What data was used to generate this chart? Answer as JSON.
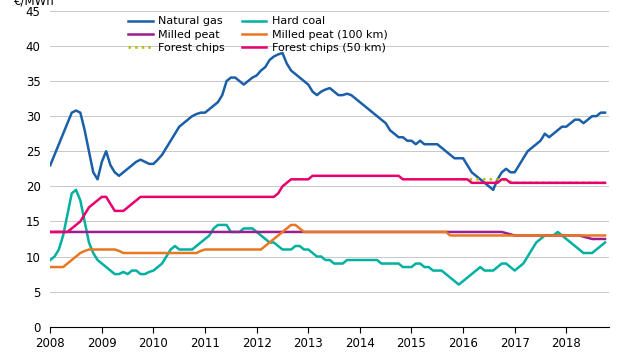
{
  "title": "€/MWh",
  "ylim": [
    0,
    45
  ],
  "yticks": [
    0,
    5,
    10,
    15,
    20,
    25,
    30,
    35,
    40,
    45
  ],
  "xlim": [
    2008.0,
    2018.83
  ],
  "xtick_positions": [
    2008,
    2009,
    2010,
    2011,
    2012,
    2013,
    2014,
    2015,
    2016,
    2017,
    2018
  ],
  "xtick_labels": [
    "2008",
    "2009",
    "2010",
    "2011",
    "2012",
    "2013",
    "2014",
    "2015",
    "2016",
    "2017",
    "2018"
  ],
  "background_color": "#ffffff",
  "grid_color": "#c8c8c8",
  "series": {
    "natural_gas": {
      "label": "Natural gas",
      "color": "#1a5fa8",
      "linewidth": 1.8,
      "x": [
        2008.0,
        2008.083,
        2008.167,
        2008.25,
        2008.333,
        2008.417,
        2008.5,
        2008.583,
        2008.667,
        2008.75,
        2008.833,
        2008.917,
        2009.0,
        2009.083,
        2009.167,
        2009.25,
        2009.333,
        2009.417,
        2009.5,
        2009.583,
        2009.667,
        2009.75,
        2009.833,
        2009.917,
        2010.0,
        2010.083,
        2010.167,
        2010.25,
        2010.333,
        2010.417,
        2010.5,
        2010.583,
        2010.667,
        2010.75,
        2010.833,
        2010.917,
        2011.0,
        2011.083,
        2011.167,
        2011.25,
        2011.333,
        2011.417,
        2011.5,
        2011.583,
        2011.667,
        2011.75,
        2011.833,
        2011.917,
        2012.0,
        2012.083,
        2012.167,
        2012.25,
        2012.333,
        2012.417,
        2012.5,
        2012.583,
        2012.667,
        2012.75,
        2012.833,
        2012.917,
        2013.0,
        2013.083,
        2013.167,
        2013.25,
        2013.333,
        2013.417,
        2013.5,
        2013.583,
        2013.667,
        2013.75,
        2013.833,
        2013.917,
        2014.0,
        2014.083,
        2014.167,
        2014.25,
        2014.333,
        2014.417,
        2014.5,
        2014.583,
        2014.667,
        2014.75,
        2014.833,
        2014.917,
        2015.0,
        2015.083,
        2015.167,
        2015.25,
        2015.333,
        2015.417,
        2015.5,
        2015.583,
        2015.667,
        2015.75,
        2015.833,
        2015.917,
        2016.0,
        2016.083,
        2016.167,
        2016.25,
        2016.333,
        2016.417,
        2016.5,
        2016.583,
        2016.667,
        2016.75,
        2016.833,
        2016.917,
        2017.0,
        2017.083,
        2017.167,
        2017.25,
        2017.333,
        2017.417,
        2017.5,
        2017.583,
        2017.667,
        2017.75,
        2017.833,
        2017.917,
        2018.0,
        2018.083,
        2018.167,
        2018.25,
        2018.333,
        2018.417,
        2018.5,
        2018.583,
        2018.667,
        2018.75
      ],
      "y": [
        23.0,
        24.5,
        26.0,
        27.5,
        29.0,
        30.5,
        30.8,
        30.5,
        28.0,
        25.0,
        22.0,
        21.0,
        23.5,
        25.0,
        23.0,
        22.0,
        21.5,
        22.0,
        22.5,
        23.0,
        23.5,
        23.8,
        23.5,
        23.2,
        23.2,
        23.8,
        24.5,
        25.5,
        26.5,
        27.5,
        28.5,
        29.0,
        29.5,
        30.0,
        30.3,
        30.5,
        30.5,
        31.0,
        31.5,
        32.0,
        33.0,
        35.0,
        35.5,
        35.5,
        35.0,
        34.5,
        35.0,
        35.5,
        35.8,
        36.5,
        37.0,
        38.0,
        38.5,
        38.8,
        39.0,
        37.5,
        36.5,
        36.0,
        35.5,
        35.0,
        34.5,
        33.5,
        33.0,
        33.5,
        33.8,
        34.0,
        33.5,
        33.0,
        33.0,
        33.2,
        33.0,
        32.5,
        32.0,
        31.5,
        31.0,
        30.5,
        30.0,
        29.5,
        29.0,
        28.0,
        27.5,
        27.0,
        27.0,
        26.5,
        26.5,
        26.0,
        26.5,
        26.0,
        26.0,
        26.0,
        26.0,
        25.5,
        25.0,
        24.5,
        24.0,
        24.0,
        24.0,
        23.0,
        22.0,
        21.5,
        21.0,
        20.5,
        20.0,
        19.5,
        21.0,
        22.0,
        22.5,
        22.0,
        22.0,
        23.0,
        24.0,
        25.0,
        25.5,
        26.0,
        26.5,
        27.5,
        27.0,
        27.5,
        28.0,
        28.5,
        28.5,
        29.0,
        29.5,
        29.5,
        29.0,
        29.5,
        30.0,
        30.0,
        30.5,
        30.5
      ]
    },
    "hard_coal": {
      "label": "Hard coal",
      "color": "#00b0a0",
      "linewidth": 1.8,
      "x": [
        2008.0,
        2008.083,
        2008.167,
        2008.25,
        2008.333,
        2008.417,
        2008.5,
        2008.583,
        2008.667,
        2008.75,
        2008.833,
        2008.917,
        2009.0,
        2009.083,
        2009.167,
        2009.25,
        2009.333,
        2009.417,
        2009.5,
        2009.583,
        2009.667,
        2009.75,
        2009.833,
        2009.917,
        2010.0,
        2010.083,
        2010.167,
        2010.25,
        2010.333,
        2010.417,
        2010.5,
        2010.583,
        2010.667,
        2010.75,
        2010.833,
        2010.917,
        2011.0,
        2011.083,
        2011.167,
        2011.25,
        2011.333,
        2011.417,
        2011.5,
        2011.583,
        2011.667,
        2011.75,
        2011.833,
        2011.917,
        2012.0,
        2012.083,
        2012.167,
        2012.25,
        2012.333,
        2012.417,
        2012.5,
        2012.583,
        2012.667,
        2012.75,
        2012.833,
        2012.917,
        2013.0,
        2013.083,
        2013.167,
        2013.25,
        2013.333,
        2013.417,
        2013.5,
        2013.583,
        2013.667,
        2013.75,
        2013.833,
        2013.917,
        2014.0,
        2014.083,
        2014.167,
        2014.25,
        2014.333,
        2014.417,
        2014.5,
        2014.583,
        2014.667,
        2014.75,
        2014.833,
        2014.917,
        2015.0,
        2015.083,
        2015.167,
        2015.25,
        2015.333,
        2015.417,
        2015.5,
        2015.583,
        2015.667,
        2015.75,
        2015.833,
        2015.917,
        2016.0,
        2016.083,
        2016.167,
        2016.25,
        2016.333,
        2016.417,
        2016.5,
        2016.583,
        2016.667,
        2016.75,
        2016.833,
        2016.917,
        2017.0,
        2017.083,
        2017.167,
        2017.25,
        2017.333,
        2017.417,
        2017.5,
        2017.583,
        2017.667,
        2017.75,
        2017.833,
        2017.917,
        2018.0,
        2018.083,
        2018.167,
        2018.25,
        2018.333,
        2018.417,
        2018.5,
        2018.583,
        2018.667,
        2018.75
      ],
      "y": [
        9.5,
        10.0,
        11.0,
        13.0,
        16.0,
        19.0,
        19.5,
        18.0,
        15.0,
        12.0,
        10.5,
        9.5,
        9.0,
        8.5,
        8.0,
        7.5,
        7.5,
        7.8,
        7.5,
        8.0,
        8.0,
        7.5,
        7.5,
        7.8,
        8.0,
        8.5,
        9.0,
        10.0,
        11.0,
        11.5,
        11.0,
        11.0,
        11.0,
        11.0,
        11.5,
        12.0,
        12.5,
        13.0,
        14.0,
        14.5,
        14.5,
        14.5,
        13.5,
        13.5,
        13.5,
        14.0,
        14.0,
        14.0,
        13.5,
        13.0,
        12.5,
        12.0,
        12.0,
        11.5,
        11.0,
        11.0,
        11.0,
        11.5,
        11.5,
        11.0,
        11.0,
        10.5,
        10.0,
        10.0,
        9.5,
        9.5,
        9.0,
        9.0,
        9.0,
        9.5,
        9.5,
        9.5,
        9.5,
        9.5,
        9.5,
        9.5,
        9.5,
        9.0,
        9.0,
        9.0,
        9.0,
        9.0,
        8.5,
        8.5,
        8.5,
        9.0,
        9.0,
        8.5,
        8.5,
        8.0,
        8.0,
        8.0,
        7.5,
        7.0,
        6.5,
        6.0,
        6.5,
        7.0,
        7.5,
        8.0,
        8.5,
        8.0,
        8.0,
        8.0,
        8.5,
        9.0,
        9.0,
        8.5,
        8.0,
        8.5,
        9.0,
        10.0,
        11.0,
        12.0,
        12.5,
        13.0,
        13.0,
        13.0,
        13.5,
        13.0,
        12.5,
        12.0,
        11.5,
        11.0,
        10.5,
        10.5,
        10.5,
        11.0,
        11.5,
        12.0
      ]
    },
    "milled_peat": {
      "label": "Milled peat",
      "color": "#9b1e8e",
      "linewidth": 1.8,
      "x": [
        2008.0,
        2008.25,
        2008.5,
        2008.75,
        2009.0,
        2009.25,
        2009.5,
        2009.75,
        2010.0,
        2010.25,
        2010.5,
        2010.75,
        2011.0,
        2011.25,
        2011.5,
        2011.75,
        2012.0,
        2012.25,
        2012.5,
        2012.75,
        2013.0,
        2013.25,
        2013.5,
        2013.75,
        2014.0,
        2014.25,
        2014.5,
        2014.75,
        2015.0,
        2015.25,
        2015.5,
        2015.75,
        2016.0,
        2016.25,
        2016.5,
        2016.75,
        2017.0,
        2017.25,
        2017.5,
        2017.75,
        2018.0,
        2018.25,
        2018.5,
        2018.75
      ],
      "y": [
        13.5,
        13.5,
        13.5,
        13.5,
        13.5,
        13.5,
        13.5,
        13.5,
        13.5,
        13.5,
        13.5,
        13.5,
        13.5,
        13.5,
        13.5,
        13.5,
        13.5,
        13.5,
        13.5,
        13.5,
        13.5,
        13.5,
        13.5,
        13.5,
        13.5,
        13.5,
        13.5,
        13.5,
        13.5,
        13.5,
        13.5,
        13.5,
        13.5,
        13.5,
        13.5,
        13.5,
        13.0,
        13.0,
        13.0,
        13.0,
        13.0,
        13.0,
        12.5,
        12.5
      ]
    },
    "milled_peat_100km": {
      "label": "Milled peat (100 km)",
      "color": "#e87722",
      "linewidth": 1.8,
      "x": [
        2008.0,
        2008.083,
        2008.167,
        2008.25,
        2008.333,
        2008.417,
        2008.5,
        2008.583,
        2008.667,
        2008.75,
        2008.833,
        2008.917,
        2009.0,
        2009.083,
        2009.167,
        2009.25,
        2009.333,
        2009.417,
        2009.5,
        2009.583,
        2009.667,
        2009.75,
        2009.833,
        2009.917,
        2010.0,
        2010.083,
        2010.167,
        2010.25,
        2010.333,
        2010.417,
        2010.5,
        2010.583,
        2010.667,
        2010.75,
        2010.833,
        2010.917,
        2011.0,
        2011.083,
        2011.167,
        2011.25,
        2011.333,
        2011.417,
        2011.5,
        2011.583,
        2011.667,
        2011.75,
        2011.833,
        2011.917,
        2012.0,
        2012.083,
        2012.167,
        2012.25,
        2012.333,
        2012.417,
        2012.5,
        2012.583,
        2012.667,
        2012.75,
        2012.833,
        2012.917,
        2013.0,
        2013.083,
        2013.167,
        2013.25,
        2013.333,
        2013.417,
        2013.5,
        2013.583,
        2013.667,
        2013.75,
        2013.833,
        2013.917,
        2014.0,
        2014.083,
        2014.167,
        2014.25,
        2014.333,
        2014.417,
        2014.5,
        2014.583,
        2014.667,
        2014.75,
        2014.833,
        2014.917,
        2015.0,
        2015.083,
        2015.167,
        2015.25,
        2015.333,
        2015.417,
        2015.5,
        2015.583,
        2015.667,
        2015.75,
        2015.833,
        2015.917,
        2016.0,
        2016.083,
        2016.167,
        2016.25,
        2016.333,
        2016.417,
        2016.5,
        2016.583,
        2016.667,
        2016.75,
        2016.833,
        2016.917,
        2017.0,
        2017.083,
        2017.167,
        2017.25,
        2017.333,
        2017.417,
        2017.5,
        2017.583,
        2017.667,
        2017.75,
        2017.833,
        2017.917,
        2018.0,
        2018.083,
        2018.167,
        2018.25,
        2018.333,
        2018.417,
        2018.5,
        2018.583,
        2018.667,
        2018.75
      ],
      "y": [
        8.5,
        8.5,
        8.5,
        8.5,
        9.0,
        9.5,
        10.0,
        10.5,
        10.8,
        11.0,
        11.0,
        11.0,
        11.0,
        11.0,
        11.0,
        11.0,
        10.8,
        10.5,
        10.5,
        10.5,
        10.5,
        10.5,
        10.5,
        10.5,
        10.5,
        10.5,
        10.5,
        10.5,
        10.5,
        10.5,
        10.5,
        10.5,
        10.5,
        10.5,
        10.5,
        10.8,
        11.0,
        11.0,
        11.0,
        11.0,
        11.0,
        11.0,
        11.0,
        11.0,
        11.0,
        11.0,
        11.0,
        11.0,
        11.0,
        11.0,
        11.5,
        12.0,
        12.5,
        13.0,
        13.5,
        14.0,
        14.5,
        14.5,
        14.0,
        13.5,
        13.5,
        13.5,
        13.5,
        13.5,
        13.5,
        13.5,
        13.5,
        13.5,
        13.5,
        13.5,
        13.5,
        13.5,
        13.5,
        13.5,
        13.5,
        13.5,
        13.5,
        13.5,
        13.5,
        13.5,
        13.5,
        13.5,
        13.5,
        13.5,
        13.5,
        13.5,
        13.5,
        13.5,
        13.5,
        13.5,
        13.5,
        13.5,
        13.5,
        13.0,
        13.0,
        13.0,
        13.0,
        13.0,
        13.0,
        13.0,
        13.0,
        13.0,
        13.0,
        13.0,
        13.0,
        13.0,
        13.0,
        13.0,
        13.0,
        13.0,
        13.0,
        13.0,
        13.0,
        13.0,
        13.0,
        13.0,
        13.0,
        13.0,
        13.0,
        13.0,
        13.0,
        13.0,
        13.0,
        13.0,
        13.0,
        13.0,
        13.0,
        13.0,
        13.0,
        13.0
      ]
    },
    "forest_chips": {
      "label": "Forest chips",
      "color": "#b5bd00",
      "linewidth": 1.8,
      "linestyle": "dotted",
      "x": [
        2016.0,
        2016.25,
        2016.5,
        2016.75,
        2017.0,
        2017.25,
        2017.5,
        2017.75,
        2018.0,
        2018.25,
        2018.5,
        2018.75
      ],
      "y": [
        21.0,
        21.0,
        21.0,
        21.0,
        20.5,
        20.5,
        20.5,
        20.5,
        20.5,
        20.5,
        20.5,
        20.5
      ]
    },
    "forest_chips_50km": {
      "label": "Forest chips (50 km)",
      "color": "#e8006e",
      "linewidth": 1.8,
      "x": [
        2008.0,
        2008.083,
        2008.167,
        2008.25,
        2008.333,
        2008.417,
        2008.5,
        2008.583,
        2008.667,
        2008.75,
        2008.833,
        2008.917,
        2009.0,
        2009.083,
        2009.167,
        2009.25,
        2009.333,
        2009.417,
        2009.5,
        2009.583,
        2009.667,
        2009.75,
        2009.833,
        2009.917,
        2010.0,
        2010.083,
        2010.167,
        2010.25,
        2010.333,
        2010.417,
        2010.5,
        2010.583,
        2010.667,
        2010.75,
        2010.833,
        2010.917,
        2011.0,
        2011.083,
        2011.167,
        2011.25,
        2011.333,
        2011.417,
        2011.5,
        2011.583,
        2011.667,
        2011.75,
        2011.833,
        2011.917,
        2012.0,
        2012.083,
        2012.167,
        2012.25,
        2012.333,
        2012.417,
        2012.5,
        2012.583,
        2012.667,
        2012.75,
        2012.833,
        2012.917,
        2013.0,
        2013.083,
        2013.167,
        2013.25,
        2013.333,
        2013.417,
        2013.5,
        2013.583,
        2013.667,
        2013.75,
        2013.833,
        2013.917,
        2014.0,
        2014.083,
        2014.167,
        2014.25,
        2014.333,
        2014.417,
        2014.5,
        2014.583,
        2014.667,
        2014.75,
        2014.833,
        2014.917,
        2015.0,
        2015.083,
        2015.167,
        2015.25,
        2015.333,
        2015.417,
        2015.5,
        2015.583,
        2015.667,
        2015.75,
        2015.833,
        2015.917,
        2016.0,
        2016.083,
        2016.167,
        2016.25,
        2016.333,
        2016.417,
        2016.5,
        2016.583,
        2016.667,
        2016.75,
        2016.833,
        2016.917,
        2017.0,
        2017.083,
        2017.167,
        2017.25,
        2017.333,
        2017.417,
        2017.5,
        2017.583,
        2017.667,
        2017.75,
        2017.833,
        2017.917,
        2018.0,
        2018.083,
        2018.167,
        2018.25,
        2018.333,
        2018.417,
        2018.5,
        2018.583,
        2018.667,
        2018.75
      ],
      "y": [
        13.5,
        13.5,
        13.5,
        13.5,
        13.5,
        14.0,
        14.5,
        15.0,
        16.0,
        17.0,
        17.5,
        18.0,
        18.5,
        18.5,
        17.5,
        16.5,
        16.5,
        16.5,
        17.0,
        17.5,
        18.0,
        18.5,
        18.5,
        18.5,
        18.5,
        18.5,
        18.5,
        18.5,
        18.5,
        18.5,
        18.5,
        18.5,
        18.5,
        18.5,
        18.5,
        18.5,
        18.5,
        18.5,
        18.5,
        18.5,
        18.5,
        18.5,
        18.5,
        18.5,
        18.5,
        18.5,
        18.5,
        18.5,
        18.5,
        18.5,
        18.5,
        18.5,
        18.5,
        19.0,
        20.0,
        20.5,
        21.0,
        21.0,
        21.0,
        21.0,
        21.0,
        21.5,
        21.5,
        21.5,
        21.5,
        21.5,
        21.5,
        21.5,
        21.5,
        21.5,
        21.5,
        21.5,
        21.5,
        21.5,
        21.5,
        21.5,
        21.5,
        21.5,
        21.5,
        21.5,
        21.5,
        21.5,
        21.0,
        21.0,
        21.0,
        21.0,
        21.0,
        21.0,
        21.0,
        21.0,
        21.0,
        21.0,
        21.0,
        21.0,
        21.0,
        21.0,
        21.0,
        21.0,
        20.5,
        20.5,
        20.5,
        20.5,
        20.5,
        20.5,
        20.5,
        21.0,
        21.0,
        20.5,
        20.5,
        20.5,
        20.5,
        20.5,
        20.5,
        20.5,
        20.5,
        20.5,
        20.5,
        20.5,
        20.5,
        20.5,
        20.5,
        20.5,
        20.5,
        20.5,
        20.5,
        20.5,
        20.5,
        20.5,
        20.5,
        20.5
      ]
    }
  },
  "legend_order": [
    0,
    2,
    4,
    1,
    3,
    5
  ]
}
